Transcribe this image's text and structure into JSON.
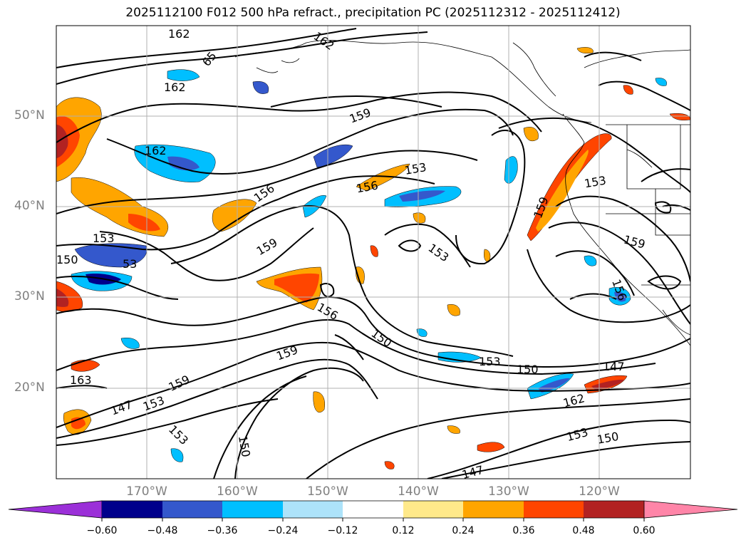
{
  "title": "2025112100 F012 500 hPa refract., precipitation PC (2025112312 - 2025112412)",
  "map": {
    "lat_labels": [
      "50°N",
      "40°N",
      "30°N",
      "20°N"
    ],
    "lon_labels": [
      "170°W",
      "160°W",
      "150°W",
      "140°W",
      "130°W",
      "120°W"
    ],
    "contour_labels": [
      "162",
      "65",
      "162",
      "162",
      "162",
      "159",
      "156",
      "156",
      "153",
      "153",
      "159",
      "153",
      "153",
      "53",
      "150",
      "156",
      "150",
      "153",
      "150",
      "147",
      "162",
      "159",
      "159",
      "153",
      "147",
      "163",
      "153",
      "150",
      "147",
      "150",
      "153",
      "159",
      "159",
      "156"
    ]
  },
  "colorbar": {
    "colors": [
      "#9b30d8",
      "#00008b",
      "#3458cc",
      "#00bfff",
      "#ade3fa",
      "#ffffff",
      "#ffe98a",
      "#ffa500",
      "#ff4500",
      "#b22222",
      "#ff85a8"
    ],
    "tick_labels": [
      "−0.60",
      "−0.48",
      "−0.36",
      "−0.24",
      "−0.12",
      "0.12",
      "0.24",
      "0.36",
      "0.48",
      "0.60"
    ]
  }
}
